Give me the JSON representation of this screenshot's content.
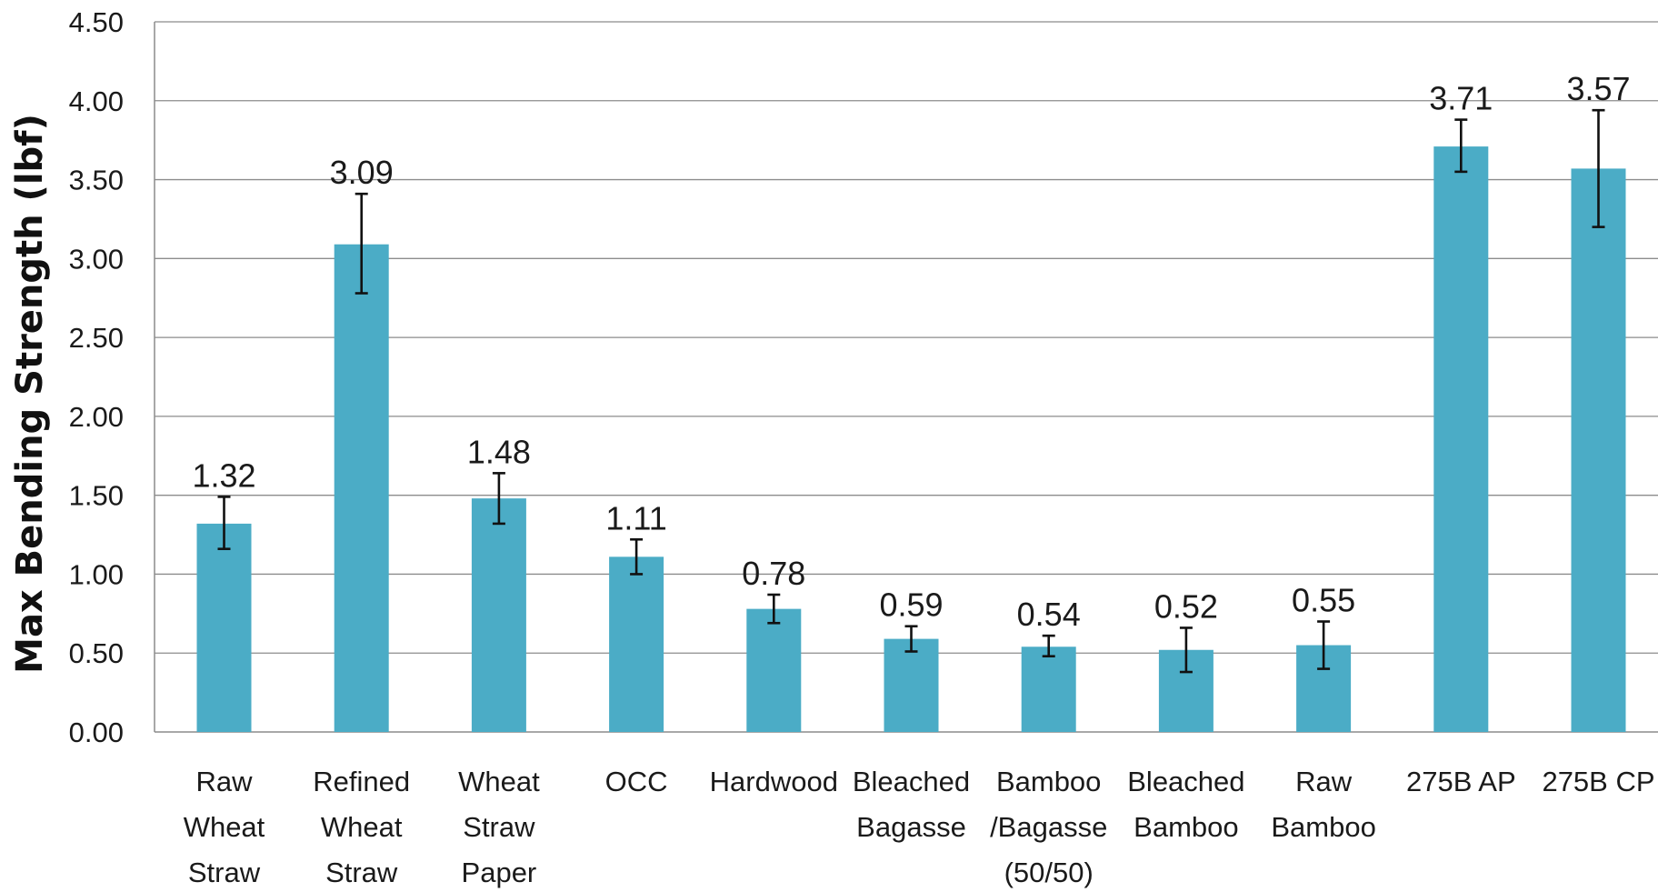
{
  "chart_data": {
    "type": "bar",
    "title": "",
    "xlabel": "",
    "ylabel": "Max Bending Strength (lbf)",
    "ylim": [
      0,
      4.5
    ],
    "ytick_step": 0.5,
    "ytick_labels": [
      "0.00",
      "0.50",
      "1.00",
      "1.50",
      "2.00",
      "2.50",
      "3.00",
      "3.50",
      "4.00",
      "4.50"
    ],
    "grid": true,
    "legend": "none",
    "bar_color": "#4BACC6",
    "categories": [
      [
        "Raw",
        "Wheat",
        "Straw"
      ],
      [
        "Refined",
        "Wheat",
        "Straw"
      ],
      [
        "Wheat",
        "Straw",
        "Paper"
      ],
      [
        "OCC"
      ],
      [
        "Hardwood"
      ],
      [
        "Bleached",
        "Bagasse"
      ],
      [
        "Bamboo",
        "/Bagasse",
        "(50/50)"
      ],
      [
        "Bleached",
        "Bamboo"
      ],
      [
        "Raw",
        "Bamboo"
      ],
      [
        "275B AP"
      ],
      [
        "275B CP"
      ]
    ],
    "values": [
      1.32,
      3.09,
      1.48,
      1.11,
      0.78,
      0.59,
      0.54,
      0.52,
      0.55,
      3.71,
      3.57
    ],
    "value_labels": [
      "1.32",
      "3.09",
      "1.48",
      "1.11",
      "0.78",
      "0.59",
      "0.54",
      "0.52",
      "0.55",
      "3.71",
      "3.57"
    ],
    "error_low": [
      1.16,
      2.78,
      1.32,
      1.0,
      0.69,
      0.51,
      0.48,
      0.38,
      0.4,
      3.55,
      3.2
    ],
    "error_high": [
      1.49,
      3.41,
      1.64,
      1.22,
      0.87,
      0.67,
      0.61,
      0.66,
      0.7,
      3.88,
      3.94
    ]
  }
}
